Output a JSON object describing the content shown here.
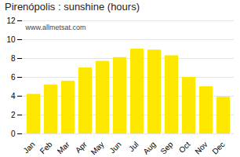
{
  "chart_data": {
    "type": "bar",
    "title": "Pirenópolis : sunshine (hours)",
    "categories": [
      "Jan",
      "Feb",
      "Mar",
      "Apr",
      "May",
      "Jun",
      "Jul",
      "Aug",
      "Sep",
      "Oct",
      "Nov",
      "Dec"
    ],
    "values": [
      4.2,
      5.2,
      5.6,
      7.0,
      7.7,
      8.1,
      9.0,
      8.9,
      8.3,
      6.0,
      5.0,
      3.9
    ],
    "color": "#FFE800",
    "ylim": [
      0,
      12
    ],
    "yticks": [
      0,
      2,
      4,
      6,
      8,
      10,
      12
    ],
    "grid": true,
    "annotations": [
      "www.allmetsat.com"
    ]
  }
}
